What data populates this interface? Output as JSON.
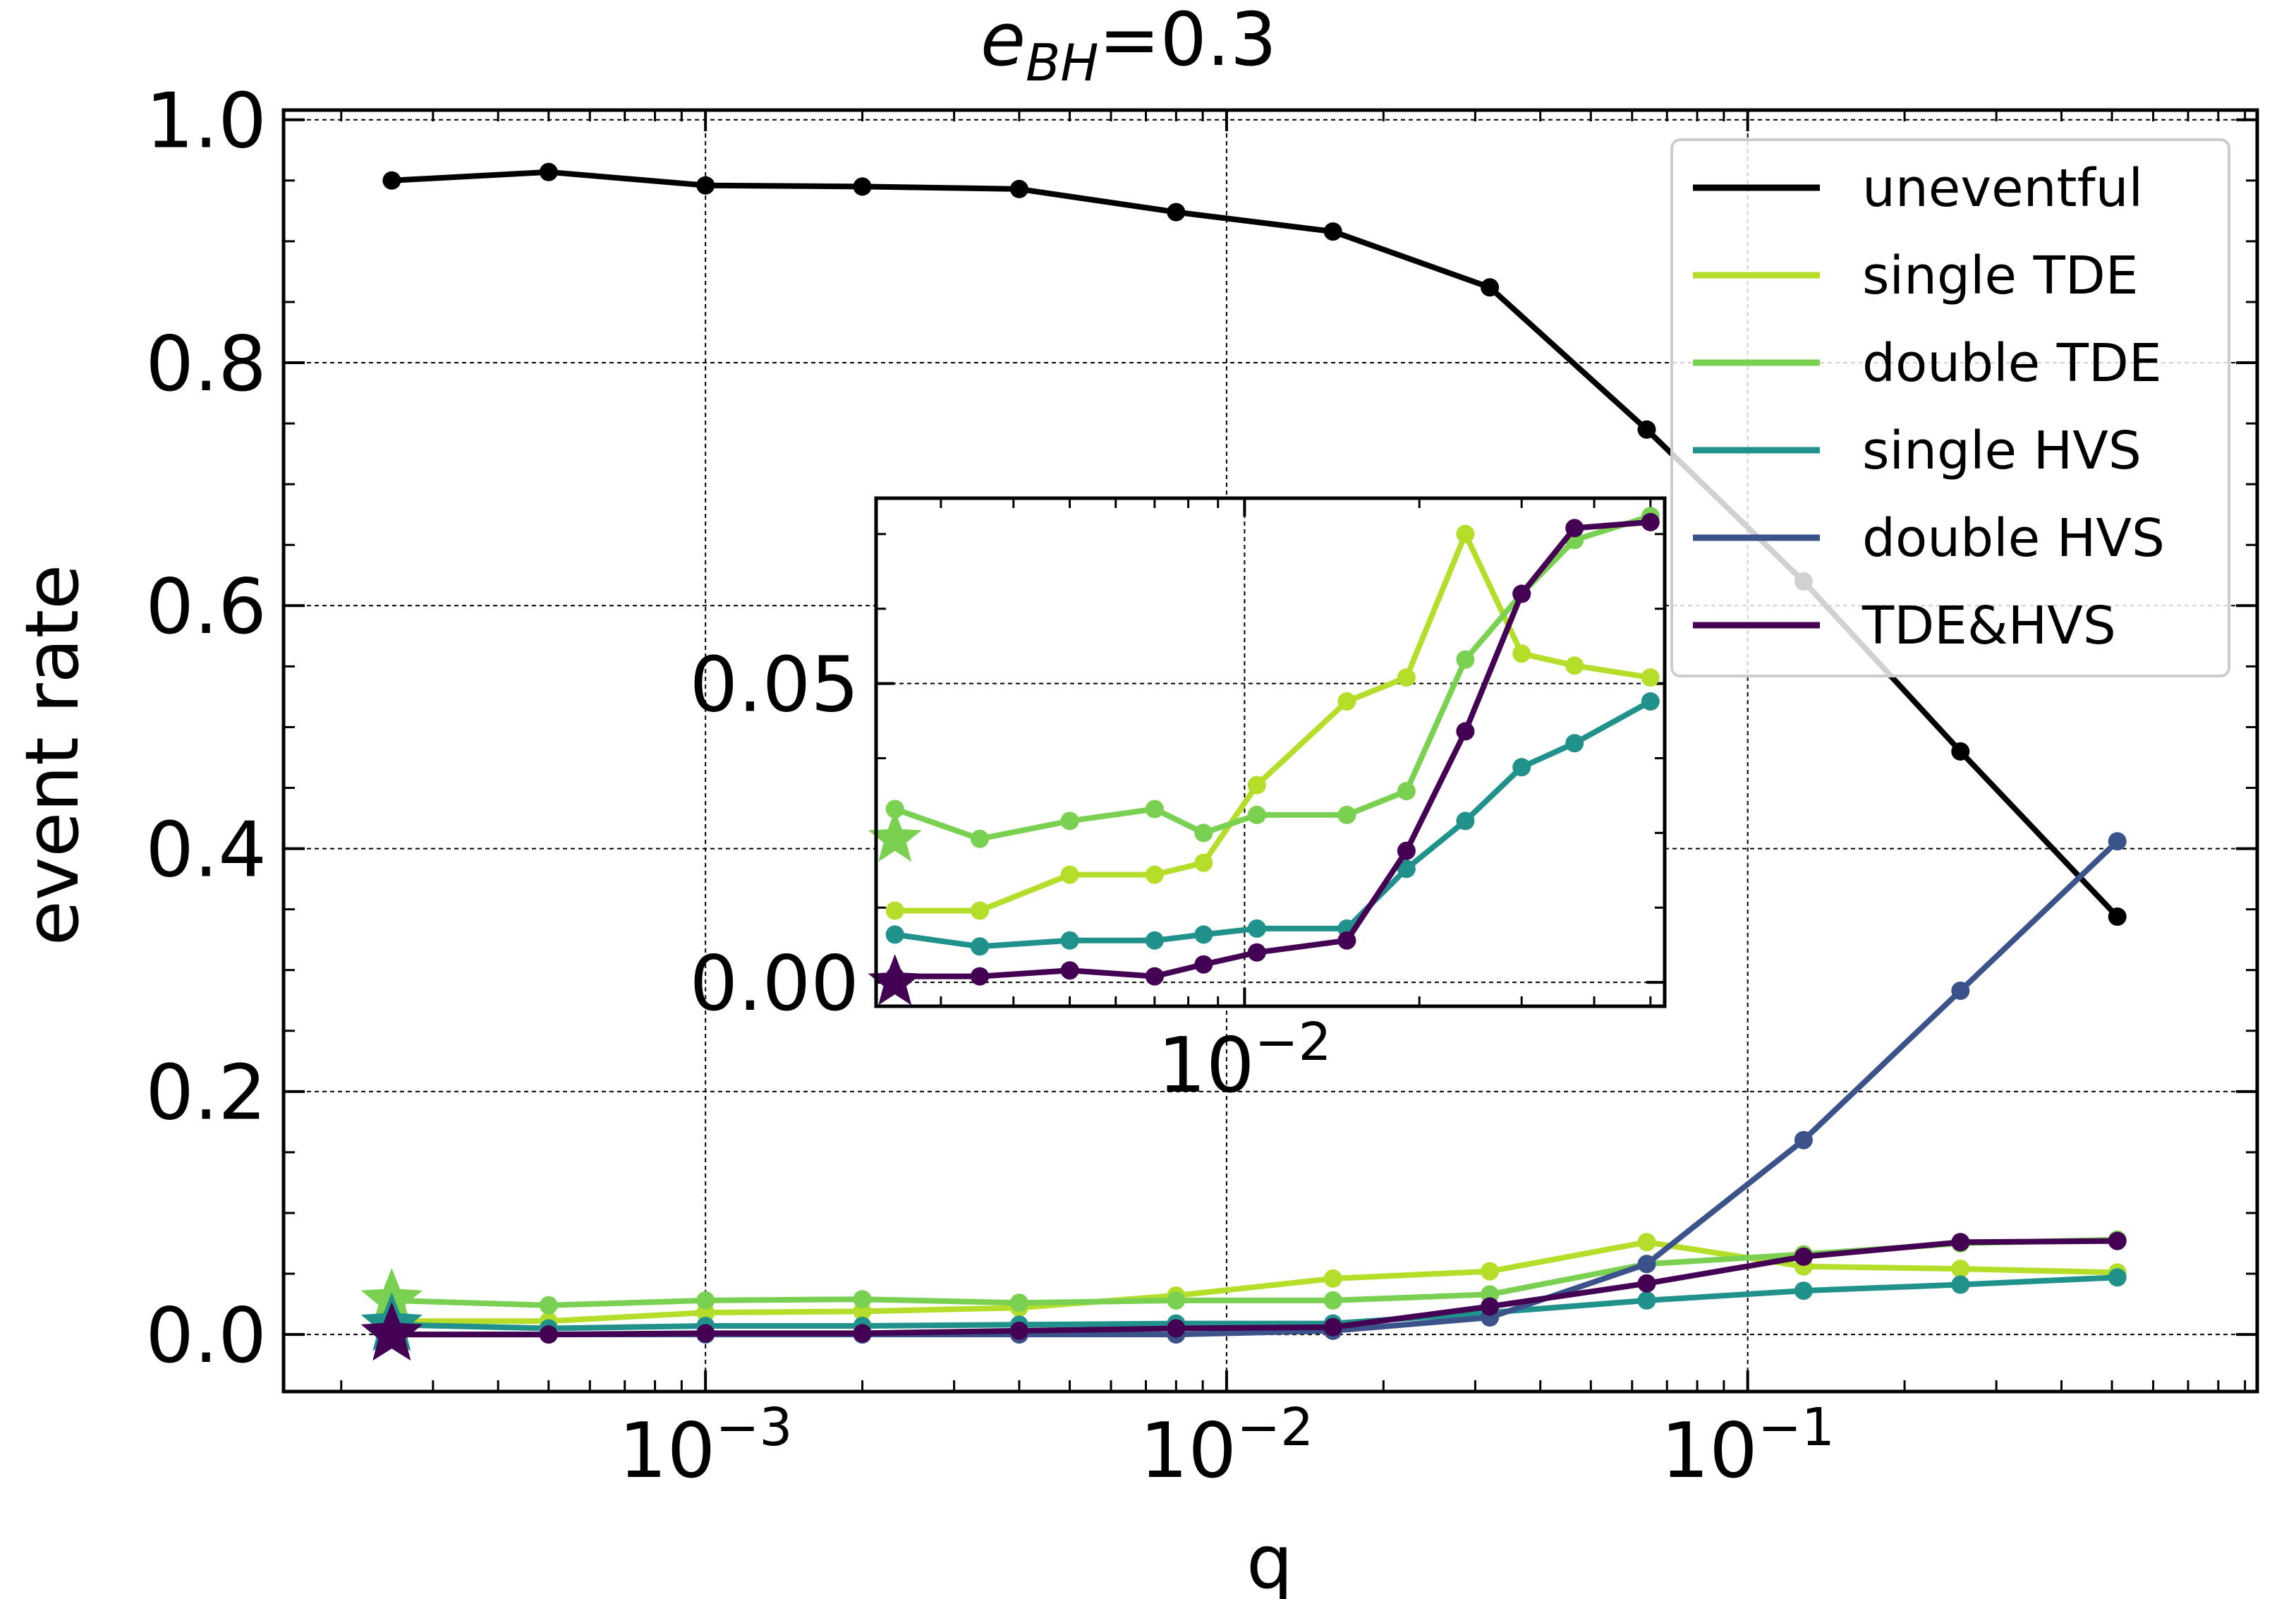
{
  "chart_data": [
    {
      "type": "line",
      "title_main": "e",
      "title_sub": "BH",
      "title_rest": "=0.3",
      "xlabel": "q",
      "ylabel": "event rate",
      "xscale": "log",
      "xlim": [
        0.000155,
        0.95
      ],
      "ylim": [
        -0.047,
        1.008
      ],
      "xticks": [
        0.001,
        0.01,
        0.1
      ],
      "xtick_labels": [
        {
          "base": "10",
          "exp": "−3"
        },
        {
          "base": "10",
          "exp": "−2"
        },
        {
          "base": "10",
          "exp": "−1"
        }
      ],
      "yticks": [
        0.0,
        0.2,
        0.4,
        0.6,
        0.8,
        1.0
      ],
      "ytick_labels": [
        "0.0",
        "0.2",
        "0.4",
        "0.6",
        "0.8",
        "1.0"
      ],
      "grid": true,
      "legend_position": "top-right",
      "x": [
        0.00025,
        0.0005,
        0.001,
        0.002,
        0.004,
        0.008,
        0.016,
        0.032,
        0.064,
        0.128,
        0.256,
        0.512
      ],
      "series": [
        {
          "name": "uneventful",
          "color": "#000000",
          "values": [
            0.95,
            0.957,
            0.946,
            0.945,
            0.943,
            0.924,
            0.908,
            0.862,
            0.745,
            0.62,
            0.48,
            0.344
          ]
        },
        {
          "name": "single TDE",
          "color": "#b5de2b",
          "values": [
            0.011,
            0.011,
            0.018,
            0.019,
            0.022,
            0.032,
            0.046,
            0.052,
            0.076,
            0.056,
            0.054,
            0.051
          ]
        },
        {
          "name": "double TDE",
          "color": "#7ad151",
          "values": [
            0.028,
            0.024,
            0.028,
            0.029,
            0.026,
            0.028,
            0.028,
            0.033,
            0.058,
            0.066,
            0.075,
            0.078
          ]
        },
        {
          "name": "single HVS",
          "color": "#21918c",
          "values": [
            0.008,
            0.005,
            0.007,
            0.007,
            0.008,
            0.009,
            0.009,
            0.018,
            0.028,
            0.036,
            0.041,
            0.047
          ]
        },
        {
          "name": "double HVS",
          "color": "#3b528b",
          "values": [
            0.0,
            0.0,
            0.0,
            0.0,
            0.0,
            0.0,
            0.003,
            0.014,
            0.058,
            0.16,
            0.283,
            0.406
          ]
        },
        {
          "name": "TDE&HVS",
          "color": "#440154",
          "values": [
            0.0,
            0.0,
            0.001,
            0.001,
            0.003,
            0.005,
            0.006,
            0.023,
            0.042,
            0.064,
            0.076,
            0.077
          ]
        }
      ],
      "star_markers": [
        {
          "series": "double TDE",
          "x": 0.00025,
          "y": 0.028
        },
        {
          "series": "single HVS",
          "x": 0.00025,
          "y": 0.008
        },
        {
          "series": "TDE&HVS",
          "x": 0.00025,
          "y": 0.0
        }
      ]
    },
    {
      "type": "line",
      "title": "inset",
      "xscale": "log",
      "xlim": [
        0.00232,
        0.0529
      ],
      "ylim": [
        -0.004,
        0.081
      ],
      "xticks": [
        0.01
      ],
      "xtick_labels": [
        {
          "base": "10",
          "exp": "−2"
        }
      ],
      "yticks": [
        0.0,
        0.05
      ],
      "ytick_labels": [
        "0.00",
        "0.05"
      ],
      "grid": true,
      "x": [
        0.0025,
        0.0035,
        0.005,
        0.007,
        0.0085,
        0.0105,
        0.015,
        0.019,
        0.024,
        0.03,
        0.037,
        0.05
      ],
      "series": [
        {
          "name": "single TDE",
          "color": "#b5de2b",
          "values": [
            0.012,
            0.012,
            0.018,
            0.018,
            0.02,
            0.033,
            0.047,
            0.051,
            0.075,
            0.055,
            0.053,
            0.051
          ]
        },
        {
          "name": "double TDE",
          "color": "#7ad151",
          "values": [
            0.029,
            0.024,
            0.027,
            0.029,
            0.025,
            0.028,
            0.028,
            0.032,
            0.054,
            0.065,
            0.074,
            0.078
          ]
        },
        {
          "name": "single HVS",
          "color": "#21918c",
          "values": [
            0.008,
            0.006,
            0.007,
            0.007,
            0.008,
            0.009,
            0.009,
            0.019,
            0.027,
            0.036,
            0.04,
            0.047
          ]
        },
        {
          "name": "TDE&HVS",
          "color": "#440154",
          "values": [
            0.001,
            0.001,
            0.002,
            0.001,
            0.003,
            0.005,
            0.007,
            0.022,
            0.042,
            0.065,
            0.076,
            0.077
          ]
        }
      ],
      "star_markers": [
        {
          "series": "double TDE",
          "x": 0.0025,
          "y": 0.024
        },
        {
          "series": "single HVS",
          "x": 0.0025,
          "y": 0.0
        },
        {
          "series": "TDE&HVS",
          "x": 0.0025,
          "y": 0.0
        }
      ]
    }
  ]
}
